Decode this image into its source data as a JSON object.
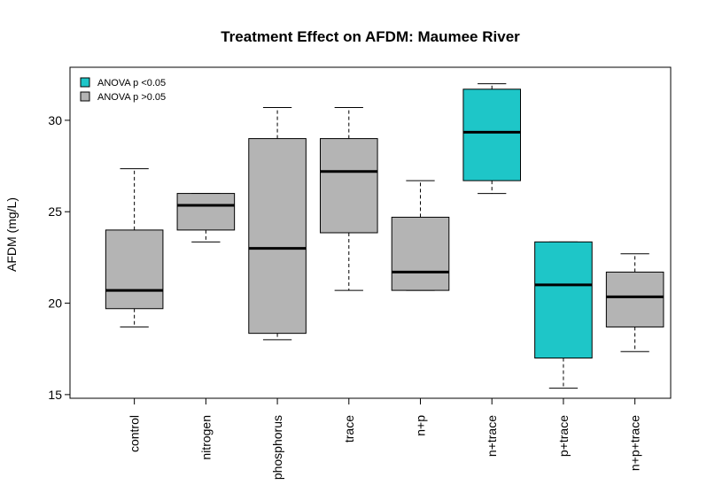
{
  "chart_data": {
    "type": "boxplot",
    "title": "Treatment Effect on AFDM: Maumee River",
    "xlabel": "",
    "ylabel": "AFDM (mg/L)",
    "ylim": [
      14.8,
      32.9
    ],
    "yticks": [
      15,
      20,
      25,
      30
    ],
    "grid": false,
    "legend": {
      "position": "top-left",
      "entries": [
        {
          "label": "ANOVA p <0.05",
          "color": "#1ec6c8"
        },
        {
          "label": "ANOVA p >0.05",
          "color": "#b4b4b4"
        }
      ]
    },
    "categories": [
      "control",
      "nitrogen",
      "phosphorus",
      "trace",
      "n+p",
      "n+trace",
      "p+trace",
      "n+p+trace"
    ],
    "boxes": [
      {
        "min": 18.7,
        "q1": 19.7,
        "median": 20.7,
        "q3": 24.0,
        "max": 27.35,
        "significant": false
      },
      {
        "min": 23.35,
        "q1": 24.0,
        "median": 25.35,
        "q3": 26.0,
        "max": 26.0,
        "significant": false
      },
      {
        "min": 18.0,
        "q1": 18.35,
        "median": 23.0,
        "q3": 29.0,
        "max": 30.7,
        "significant": false
      },
      {
        "min": 20.7,
        "q1": 23.85,
        "median": 27.2,
        "q3": 29.0,
        "max": 30.7,
        "significant": false
      },
      {
        "min": 20.7,
        "q1": 20.7,
        "median": 21.7,
        "q3": 24.7,
        "max": 26.7,
        "significant": false
      },
      {
        "min": 26.0,
        "q1": 26.7,
        "median": 29.35,
        "q3": 31.7,
        "max": 32.0,
        "significant": true
      },
      {
        "min": 15.35,
        "q1": 17.0,
        "median": 21.0,
        "q3": 23.35,
        "max": 23.35,
        "significant": true
      },
      {
        "min": 17.35,
        "q1": 18.7,
        "median": 20.35,
        "q3": 21.7,
        "max": 22.7,
        "significant": false
      }
    ]
  }
}
